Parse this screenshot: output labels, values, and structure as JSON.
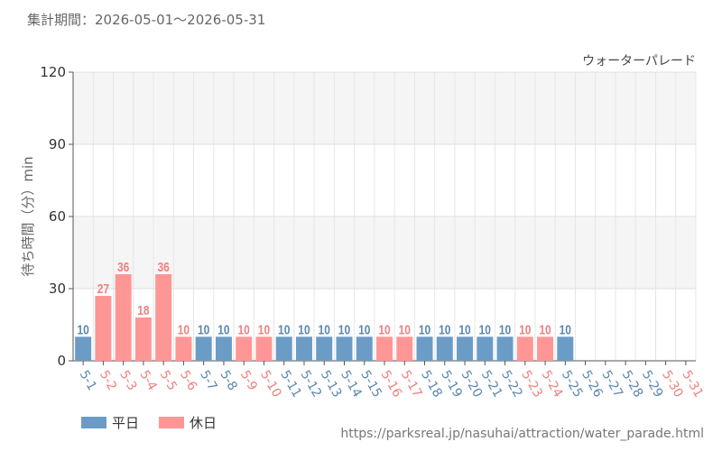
{
  "period_text": "集計期間：2026-05-01～2026-05-31",
  "source_text": "https://parksreal.jp/nasuhai/attraction/water_parade.html",
  "colors": {
    "weekday": "#6b9cc6",
    "holiday": "#ff9696",
    "label_weekday": "#5b87b0",
    "label_holiday": "#f08080"
  },
  "chart_data": {
    "type": "bar",
    "title": "ウォーターパレード",
    "xlabel": "",
    "ylabel": "待ち時間（分）min",
    "ylim": [
      0,
      120
    ],
    "yticks": [
      0,
      30,
      60,
      90,
      120
    ],
    "grid": true,
    "legend_position": "bottom-left",
    "series": [
      {
        "name": "平日",
        "key": "weekday"
      },
      {
        "name": "休日",
        "key": "holiday"
      }
    ],
    "categories": [
      "5-1",
      "5-2",
      "5-3",
      "5-4",
      "5-5",
      "5-6",
      "5-7",
      "5-8",
      "5-9",
      "5-10",
      "5-11",
      "5-12",
      "5-13",
      "5-14",
      "5-15",
      "5-16",
      "5-17",
      "5-18",
      "5-19",
      "5-20",
      "5-21",
      "5-22",
      "5-23",
      "5-24",
      "5-25",
      "5-26",
      "5-27",
      "5-28",
      "5-29",
      "5-30",
      "5-31"
    ],
    "day_type": [
      "weekday",
      "holiday",
      "holiday",
      "holiday",
      "holiday",
      "holiday",
      "weekday",
      "weekday",
      "holiday",
      "holiday",
      "weekday",
      "weekday",
      "weekday",
      "weekday",
      "weekday",
      "holiday",
      "holiday",
      "weekday",
      "weekday",
      "weekday",
      "weekday",
      "weekday",
      "holiday",
      "holiday",
      "weekday",
      "weekday",
      "weekday",
      "weekday",
      "weekday",
      "holiday",
      "holiday"
    ],
    "values": [
      10,
      27,
      36,
      18,
      36,
      10,
      10,
      10,
      10,
      10,
      10,
      10,
      10,
      10,
      10,
      10,
      10,
      10,
      10,
      10,
      10,
      10,
      10,
      10,
      10,
      null,
      null,
      null,
      null,
      null,
      null
    ]
  }
}
